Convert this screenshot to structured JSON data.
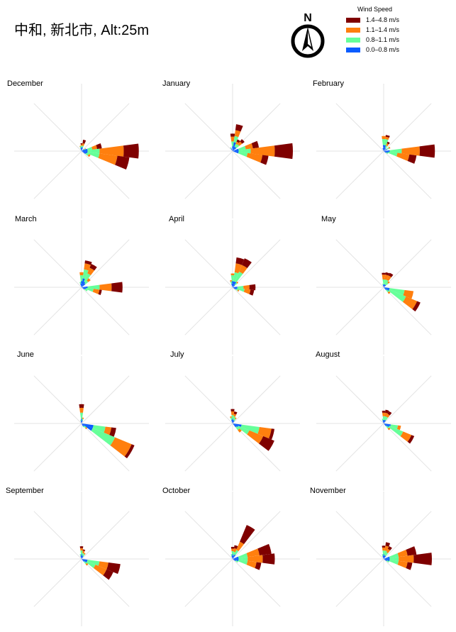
{
  "header": {
    "title": "中和, 新北市, Alt:25m"
  },
  "compass": {
    "letter": "N",
    "icon": "north-arrow-icon"
  },
  "legend": {
    "title": "Wind Speed",
    "items": [
      {
        "label": "1.4–4.8 m/s",
        "color": "#7f0000"
      },
      {
        "label": "1.1–1.4 m/s",
        "color": "#ff7f0e"
      },
      {
        "label": "0.8–1.1 m/s",
        "color": "#66ff99"
      },
      {
        "label": "0.0–0.8 m/s",
        "color": "#0a5cff"
      }
    ]
  },
  "chart_data": {
    "type": "windrose",
    "bins": [
      "0.0–0.8 m/s",
      "0.8–1.1 m/s",
      "1.1–1.4 m/s",
      "1.4–4.8 m/s"
    ],
    "colors": [
      "#0a5cff",
      "#66ff99",
      "#ff7f0e",
      "#7f0000"
    ],
    "sector_width_deg": 15,
    "months": [
      {
        "name": "December",
        "petals": [
          {
            "dir": 0,
            "v": [
              7,
              2,
              2,
              2
            ]
          },
          {
            "dir": 15,
            "v": [
              6,
              3,
              4,
              6
            ]
          },
          {
            "dir": 60,
            "v": [
              5,
              2,
              1,
              0
            ]
          },
          {
            "dir": 75,
            "v": [
              10,
              8,
              8,
              8
            ]
          },
          {
            "dir": 90,
            "v": [
              10,
              20,
              40,
              25
            ]
          },
          {
            "dir": 105,
            "v": [
              10,
              20,
              30,
              20
            ]
          },
          {
            "dir": 120,
            "v": [
              8,
              5,
              3,
              0
            ]
          },
          {
            "dir": 345,
            "v": [
              5,
              3,
              1,
              0
            ]
          }
        ]
      },
      {
        "name": "January",
        "petals": [
          {
            "dir": 0,
            "v": [
              8,
              8,
              8,
              5
            ]
          },
          {
            "dir": 15,
            "v": [
              15,
              10,
              10,
              10
            ]
          },
          {
            "dir": 30,
            "v": [
              8,
              5,
              4,
              4
            ]
          },
          {
            "dir": 45,
            "v": [
              8,
              6,
              6,
              5
            ]
          },
          {
            "dir": 75,
            "v": [
              10,
              12,
              12,
              10
            ]
          },
          {
            "dir": 90,
            "v": [
              10,
              20,
              40,
              30
            ]
          },
          {
            "dir": 105,
            "v": [
              10,
              15,
              25,
              10
            ]
          },
          {
            "dir": 330,
            "v": [
              5,
              2,
              0,
              0
            ]
          }
        ]
      },
      {
        "name": "February",
        "petals": [
          {
            "dir": 0,
            "v": [
              10,
              10,
              5,
              0
            ]
          },
          {
            "dir": 15,
            "v": [
              10,
              10,
              4,
              3
            ]
          },
          {
            "dir": 30,
            "v": [
              6,
              4,
              4,
              3
            ]
          },
          {
            "dir": 60,
            "v": [
              6,
              4,
              2,
              0
            ]
          },
          {
            "dir": 90,
            "v": [
              10,
              20,
              30,
              25
            ]
          },
          {
            "dir": 105,
            "v": [
              8,
              15,
              20,
              12
            ]
          },
          {
            "dir": 120,
            "v": [
              5,
              3,
              0,
              0
            ]
          },
          {
            "dir": 345,
            "v": [
              5,
              0,
              0,
              0
            ]
          }
        ]
      },
      {
        "name": "March",
        "petals": [
          {
            "dir": 0,
            "v": [
              10,
              10,
              5,
              0
            ]
          },
          {
            "dir": 15,
            "v": [
              15,
              15,
              10,
              5
            ]
          },
          {
            "dir": 30,
            "v": [
              10,
              15,
              10,
              7
            ]
          },
          {
            "dir": 45,
            "v": [
              8,
              6,
              5,
              0
            ]
          },
          {
            "dir": 90,
            "v": [
              10,
              20,
              20,
              18
            ]
          },
          {
            "dir": 105,
            "v": [
              8,
              12,
              10,
              4
            ]
          },
          {
            "dir": 120,
            "v": [
              6,
              5,
              0,
              0
            ]
          },
          {
            "dir": 345,
            "v": [
              6,
              3,
              0,
              0
            ]
          }
        ]
      },
      {
        "name": "April",
        "petals": [
          {
            "dir": 0,
            "v": [
              10,
              10,
              3,
              0
            ]
          },
          {
            "dir": 15,
            "v": [
              10,
              15,
              15,
              10
            ]
          },
          {
            "dir": 30,
            "v": [
              10,
              18,
              12,
              12
            ]
          },
          {
            "dir": 45,
            "v": [
              5,
              5,
              2,
              0
            ]
          },
          {
            "dir": 90,
            "v": [
              8,
              10,
              10,
              10
            ]
          },
          {
            "dir": 105,
            "v": [
              8,
              12,
              10,
              6
            ]
          },
          {
            "dir": 120,
            "v": [
              6,
              4,
              2,
              0
            ]
          },
          {
            "dir": 345,
            "v": [
              6,
              4,
              2,
              0
            ]
          }
        ]
      },
      {
        "name": "May",
        "petals": [
          {
            "dir": 0,
            "v": [
              5,
              8,
              8,
              3
            ]
          },
          {
            "dir": 15,
            "v": [
              5,
              8,
              8,
              4
            ]
          },
          {
            "dir": 30,
            "v": [
              5,
              8,
              8,
              5
            ]
          },
          {
            "dir": 45,
            "v": [
              5,
              5,
              3,
              0
            ]
          },
          {
            "dir": 105,
            "v": [
              10,
              25,
              15,
              0
            ]
          },
          {
            "dir": 120,
            "v": [
              10,
              30,
              20,
              6
            ]
          },
          {
            "dir": 135,
            "v": [
              6,
              5,
              3,
              0
            ]
          },
          {
            "dir": 345,
            "v": [
              4,
              2,
              0,
              0
            ]
          }
        ]
      },
      {
        "name": "June",
        "petals": [
          {
            "dir": 0,
            "v": [
              8,
              10,
              8,
              6
            ]
          },
          {
            "dir": 15,
            "v": [
              5,
              3,
              2,
              0
            ]
          },
          {
            "dir": 105,
            "v": [
              20,
              20,
              10,
              8
            ]
          },
          {
            "dir": 120,
            "v": [
              20,
              40,
              30,
              5
            ]
          },
          {
            "dir": 135,
            "v": [
              6,
              4,
              2,
              0
            ]
          },
          {
            "dir": 150,
            "v": [
              5,
              2,
              0,
              0
            ]
          },
          {
            "dir": 345,
            "v": [
              4,
              2,
              0,
              0
            ]
          }
        ]
      },
      {
        "name": "July",
        "petals": [
          {
            "dir": 0,
            "v": [
              8,
              6,
              6,
              4
            ]
          },
          {
            "dir": 15,
            "v": [
              6,
              6,
              4,
              4
            ]
          },
          {
            "dir": 30,
            "v": [
              5,
              4,
              2,
              0
            ]
          },
          {
            "dir": 105,
            "v": [
              15,
              30,
              20,
              5
            ]
          },
          {
            "dir": 120,
            "v": [
              10,
              20,
              25,
              20
            ]
          },
          {
            "dir": 135,
            "v": [
              8,
              6,
              5,
              0
            ]
          },
          {
            "dir": 345,
            "v": [
              6,
              4,
              2,
              0
            ]
          }
        ]
      },
      {
        "name": "August",
        "petals": [
          {
            "dir": 0,
            "v": [
              6,
              6,
              6,
              3
            ]
          },
          {
            "dir": 15,
            "v": [
              6,
              6,
              6,
              5
            ]
          },
          {
            "dir": 30,
            "v": [
              6,
              6,
              5,
              5
            ]
          },
          {
            "dir": 105,
            "v": [
              12,
              12,
              5,
              0
            ]
          },
          {
            "dir": 120,
            "v": [
              10,
              25,
              15,
              5
            ]
          },
          {
            "dir": 135,
            "v": [
              6,
              5,
              3,
              0
            ]
          },
          {
            "dir": 345,
            "v": [
              5,
              3,
              0,
              0
            ]
          }
        ]
      },
      {
        "name": "September",
        "petals": [
          {
            "dir": 0,
            "v": [
              8,
              6,
              4,
              3
            ]
          },
          {
            "dir": 15,
            "v": [
              6,
              4,
              4,
              2
            ]
          },
          {
            "dir": 30,
            "v": [
              5,
              4,
              2,
              0
            ]
          },
          {
            "dir": 105,
            "v": [
              10,
              20,
              15,
              20
            ]
          },
          {
            "dir": 120,
            "v": [
              10,
              15,
              20,
              12
            ]
          },
          {
            "dir": 135,
            "v": [
              6,
              5,
              3,
              0
            ]
          },
          {
            "dir": 345,
            "v": [
              5,
              3,
              0,
              0
            ]
          }
        ]
      },
      {
        "name": "October",
        "petals": [
          {
            "dir": 0,
            "v": [
              8,
              5,
              4,
              3
            ]
          },
          {
            "dir": 15,
            "v": [
              6,
              6,
              6,
              5
            ]
          },
          {
            "dir": 30,
            "v": [
              8,
              8,
              15,
              30
            ]
          },
          {
            "dir": 75,
            "v": [
              10,
              15,
              20,
              20
            ]
          },
          {
            "dir": 90,
            "v": [
              10,
              15,
              25,
              20
            ]
          },
          {
            "dir": 105,
            "v": [
              10,
              15,
              15,
              8
            ]
          },
          {
            "dir": 120,
            "v": [
              6,
              4,
              0,
              0
            ]
          },
          {
            "dir": 345,
            "v": [
              5,
              3,
              0,
              0
            ]
          }
        ]
      },
      {
        "name": "November",
        "petals": [
          {
            "dir": 0,
            "v": [
              8,
              6,
              5,
              3
            ]
          },
          {
            "dir": 15,
            "v": [
              6,
              8,
              8,
              6
            ]
          },
          {
            "dir": 30,
            "v": [
              6,
              6,
              6,
              5
            ]
          },
          {
            "dir": 75,
            "v": [
              10,
              15,
              15,
              15
            ]
          },
          {
            "dir": 90,
            "v": [
              10,
              15,
              25,
              30
            ]
          },
          {
            "dir": 105,
            "v": [
              10,
              15,
              15,
              8
            ]
          },
          {
            "dir": 120,
            "v": [
              6,
              4,
              0,
              0
            ]
          },
          {
            "dir": 345,
            "v": [
              5,
              3,
              0,
              0
            ]
          }
        ]
      }
    ]
  }
}
